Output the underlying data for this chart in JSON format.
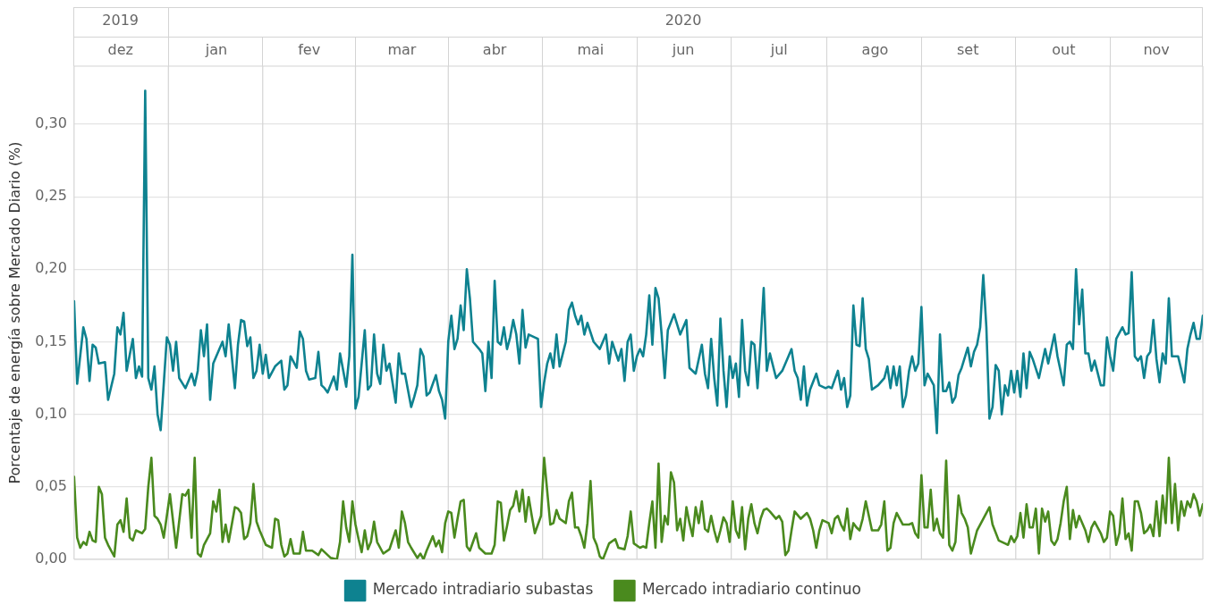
{
  "chart_data": {
    "type": "line",
    "ylabel": "Porcentaje de energía sobre Mercado Diario (%)",
    "xlim": [
      "2019-12-01",
      "2020-11-30"
    ],
    "xticks": [
      {
        "value": "2019-12-16",
        "label": "dez"
      },
      {
        "value": "2020-01-16",
        "label": "jan"
      },
      {
        "value": "2020-02-15",
        "label": "fev"
      },
      {
        "value": "2020-03-16",
        "label": "mar"
      },
      {
        "value": "2020-04-15",
        "label": "abr"
      },
      {
        "value": "2020-05-16",
        "label": "mai"
      },
      {
        "value": "2020-06-15",
        "label": "jun"
      },
      {
        "value": "2020-07-16",
        "label": "jul"
      },
      {
        "value": "2020-08-16",
        "label": "ago"
      },
      {
        "value": "2020-09-15",
        "label": "set"
      },
      {
        "value": "2020-10-16",
        "label": "out"
      },
      {
        "value": "2020-11-15",
        "label": "nov"
      }
    ],
    "x2lim": [
      "2019-12-01",
      "2020-11-30"
    ],
    "x2ticks": [
      {
        "value": "2019-12-16",
        "label": "2019"
      },
      {
        "value": "2020-06-15",
        "label": "2020"
      }
    ],
    "ylim": [
      0,
      0.34
    ],
    "yticks": [
      {
        "value": 0,
        "label": "0,00"
      },
      {
        "value": 0.05,
        "label": "0,05"
      },
      {
        "value": 0.1,
        "label": "0,10"
      },
      {
        "value": 0.15,
        "label": "0,15"
      },
      {
        "value": 0.2,
        "label": "0,20"
      },
      {
        "value": 0.25,
        "label": "0,25"
      },
      {
        "value": 0.3,
        "label": "0,30"
      }
    ],
    "grid": "y",
    "legend": "bottom",
    "marker": "none",
    "line_style": "solid",
    "series": [
      {
        "name": "Mercado intradiario subastas",
        "color": "#0e8290",
        "x": [
          "2019-12-01",
          "2019-12-02",
          "2019-12-04",
          "2019-12-05",
          "2019-12-06",
          "2019-12-07",
          "2019-12-08",
          "2019-12-09",
          "2019-12-11",
          "2019-12-12",
          "2019-12-14",
          "2019-12-15",
          "2019-12-16",
          "2019-12-17",
          "2019-12-18",
          "2019-12-20",
          "2019-12-21",
          "2019-12-22",
          "2019-12-23",
          "2019-12-24",
          "2019-12-25",
          "2019-12-26",
          "2019-12-27",
          "2019-12-28",
          "2019-12-29",
          "2019-12-31",
          "2020-01-01",
          "2020-01-02",
          "2020-01-03",
          "2020-01-04",
          "2020-01-06",
          "2020-01-08",
          "2020-01-09",
          "2020-01-10",
          "2020-01-11",
          "2020-01-12",
          "2020-01-13",
          "2020-01-14",
          "2020-01-15",
          "2020-01-17",
          "2020-01-18",
          "2020-01-19",
          "2020-01-20",
          "2020-01-22",
          "2020-01-23",
          "2020-01-24",
          "2020-01-25",
          "2020-01-26",
          "2020-01-27",
          "2020-01-28",
          "2020-01-29",
          "2020-01-30",
          "2020-01-31",
          "2020-02-01",
          "2020-02-02",
          "2020-02-04",
          "2020-02-06",
          "2020-02-07",
          "2020-02-08",
          "2020-02-09",
          "2020-02-11",
          "2020-02-12",
          "2020-02-13",
          "2020-02-14",
          "2020-02-15",
          "2020-02-17",
          "2020-02-18",
          "2020-02-19",
          "2020-02-20",
          "2020-02-21",
          "2020-02-23",
          "2020-02-24",
          "2020-02-25",
          "2020-02-27",
          "2020-02-28",
          "2020-02-29",
          "2020-03-01",
          "2020-03-02",
          "2020-03-04",
          "2020-03-05",
          "2020-03-06",
          "2020-03-07",
          "2020-03-08",
          "2020-03-09",
          "2020-03-10",
          "2020-03-11",
          "2020-03-12",
          "2020-03-14",
          "2020-03-15",
          "2020-03-16",
          "2020-03-17",
          "2020-03-19",
          "2020-03-20",
          "2020-03-21",
          "2020-03-22",
          "2020-03-23",
          "2020-03-24",
          "2020-03-25",
          "2020-03-27",
          "2020-03-28",
          "2020-03-29",
          "2020-03-30",
          "2020-03-31",
          "2020-04-01",
          "2020-04-02",
          "2020-04-03",
          "2020-04-04",
          "2020-04-05",
          "2020-04-06",
          "2020-04-07",
          "2020-04-08",
          "2020-04-10",
          "2020-04-11",
          "2020-04-12",
          "2020-04-13",
          "2020-04-14",
          "2020-04-15",
          "2020-04-16",
          "2020-04-17",
          "2020-04-18",
          "2020-04-19",
          "2020-04-20",
          "2020-04-21",
          "2020-04-22",
          "2020-04-23",
          "2020-04-24",
          "2020-04-25",
          "2020-04-26",
          "2020-04-28",
          "2020-04-29",
          "2020-04-30",
          "2020-05-01",
          "2020-05-02",
          "2020-05-03",
          "2020-05-04",
          "2020-05-05",
          "2020-05-06",
          "2020-05-08",
          "2020-05-09",
          "2020-05-10",
          "2020-05-11",
          "2020-05-12",
          "2020-05-13",
          "2020-05-14",
          "2020-05-15",
          "2020-05-17",
          "2020-05-19",
          "2020-05-21",
          "2020-05-22",
          "2020-05-23",
          "2020-05-25",
          "2020-05-26",
          "2020-05-27",
          "2020-05-28",
          "2020-05-29",
          "2020-05-30",
          "2020-05-31",
          "2020-06-01",
          "2020-06-02",
          "2020-06-03",
          "2020-06-04",
          "2020-06-05",
          "2020-06-06",
          "2020-06-07",
          "2020-06-08",
          "2020-06-09",
          "2020-06-10",
          "2020-06-12",
          "2020-06-14",
          "2020-06-16",
          "2020-06-17",
          "2020-06-19",
          "2020-06-21",
          "2020-06-22",
          "2020-06-23",
          "2020-06-24",
          "2020-06-25",
          "2020-06-26",
          "2020-06-27",
          "2020-06-28",
          "2020-06-29",
          "2020-06-30",
          "2020-07-01",
          "2020-07-02",
          "2020-07-03",
          "2020-07-04",
          "2020-07-05",
          "2020-07-06",
          "2020-07-07",
          "2020-07-08",
          "2020-07-09",
          "2020-07-10",
          "2020-07-11",
          "2020-07-12",
          "2020-07-13",
          "2020-07-15",
          "2020-07-17",
          "2020-07-19",
          "2020-07-20",
          "2020-07-21",
          "2020-07-22",
          "2020-07-23",
          "2020-07-24",
          "2020-07-25",
          "2020-07-26",
          "2020-07-28",
          "2020-07-29",
          "2020-07-31",
          "2020-08-01",
          "2020-08-02",
          "2020-08-04",
          "2020-08-05",
          "2020-08-06",
          "2020-08-07",
          "2020-08-08",
          "2020-08-09",
          "2020-08-10",
          "2020-08-11",
          "2020-08-12",
          "2020-08-13",
          "2020-08-14",
          "2020-08-15",
          "2020-08-17",
          "2020-08-19",
          "2020-08-20",
          "2020-08-21",
          "2020-08-22",
          "2020-08-23",
          "2020-08-24",
          "2020-08-25",
          "2020-08-26",
          "2020-08-27",
          "2020-08-28",
          "2020-08-29",
          "2020-08-30",
          "2020-08-31",
          "2020-09-01",
          "2020-09-02",
          "2020-09-04",
          "2020-09-05",
          "2020-09-06",
          "2020-09-07",
          "2020-09-08",
          "2020-09-09",
          "2020-09-10",
          "2020-09-11",
          "2020-09-12",
          "2020-09-13",
          "2020-09-15",
          "2020-09-16",
          "2020-09-17",
          "2020-09-18",
          "2020-09-19",
          "2020-09-20",
          "2020-09-21",
          "2020-09-22",
          "2020-09-23",
          "2020-09-24",
          "2020-09-25",
          "2020-09-26",
          "2020-09-27",
          "2020-09-28",
          "2020-09-29",
          "2020-09-30",
          "2020-10-01",
          "2020-10-02",
          "2020-10-03",
          "2020-10-04",
          "2020-10-05",
          "2020-10-06",
          "2020-10-08",
          "2020-10-10",
          "2020-10-11",
          "2020-10-13",
          "2020-10-14",
          "2020-10-16",
          "2020-10-17",
          "2020-10-18",
          "2020-10-19",
          "2020-10-20",
          "2020-10-21",
          "2020-10-22",
          "2020-10-23",
          "2020-10-24",
          "2020-10-25",
          "2020-10-26",
          "2020-10-28",
          "2020-10-29",
          "2020-10-30",
          "2020-10-31",
          "2020-11-01",
          "2020-11-02",
          "2020-11-04",
          "2020-11-05",
          "2020-11-06",
          "2020-11-07",
          "2020-11-08",
          "2020-11-09",
          "2020-11-10",
          "2020-11-11",
          "2020-11-12",
          "2020-11-13",
          "2020-11-14",
          "2020-11-15",
          "2020-11-16",
          "2020-11-17",
          "2020-11-18",
          "2020-11-19",
          "2020-11-20",
          "2020-11-22",
          "2020-11-24",
          "2020-11-25",
          "2020-11-26",
          "2020-11-27",
          "2020-11-28",
          "2020-11-29",
          "2020-11-30"
        ],
        "values": [
          0.178,
          0.121,
          0.16,
          0.152,
          0.123,
          0.148,
          0.146,
          0.135,
          0.136,
          0.11,
          0.128,
          0.16,
          0.155,
          0.17,
          0.13,
          0.152,
          0.125,
          0.133,
          0.126,
          0.323,
          0.125,
          0.117,
          0.133,
          0.1,
          0.089,
          0.153,
          0.148,
          0.13,
          0.15,
          0.125,
          0.118,
          0.128,
          0.12,
          0.13,
          0.158,
          0.14,
          0.162,
          0.11,
          0.135,
          0.145,
          0.15,
          0.14,
          0.162,
          0.118,
          0.148,
          0.165,
          0.164,
          0.147,
          0.153,
          0.125,
          0.13,
          0.148,
          0.128,
          0.141,
          0.125,
          0.133,
          0.137,
          0.117,
          0.12,
          0.14,
          0.132,
          0.157,
          0.152,
          0.13,
          0.124,
          0.125,
          0.143,
          0.12,
          0.118,
          0.115,
          0.126,
          0.117,
          0.142,
          0.119,
          0.14,
          0.21,
          0.104,
          0.112,
          0.158,
          0.117,
          0.12,
          0.155,
          0.128,
          0.121,
          0.148,
          0.13,
          0.135,
          0.108,
          0.142,
          0.128,
          0.128,
          0.105,
          0.112,
          0.12,
          0.145,
          0.14,
          0.113,
          0.115,
          0.127,
          0.116,
          0.11,
          0.097,
          0.15,
          0.168,
          0.145,
          0.152,
          0.175,
          0.158,
          0.2,
          0.18,
          0.15,
          0.145,
          0.142,
          0.116,
          0.15,
          0.125,
          0.192,
          0.15,
          0.148,
          0.16,
          0.145,
          0.153,
          0.165,
          0.155,
          0.135,
          0.172,
          0.146,
          0.155,
          0.153,
          0.152,
          0.105,
          0.122,
          0.135,
          0.142,
          0.132,
          0.155,
          0.133,
          0.15,
          0.172,
          0.177,
          0.168,
          0.162,
          0.168,
          0.155,
          0.163,
          0.15,
          0.145,
          0.155,
          0.135,
          0.15,
          0.137,
          0.145,
          0.123,
          0.15,
          0.155,
          0.13,
          0.14,
          0.145,
          0.14,
          0.155,
          0.182,
          0.148,
          0.187,
          0.18,
          0.155,
          0.125,
          0.158,
          0.169,
          0.155,
          0.165,
          0.132,
          0.128,
          0.148,
          0.128,
          0.118,
          0.152,
          0.125,
          0.106,
          0.166,
          0.13,
          0.105,
          0.14,
          0.125,
          0.135,
          0.112,
          0.165,
          0.13,
          0.12,
          0.15,
          0.148,
          0.118,
          0.15,
          0.187,
          0.13,
          0.142,
          0.125,
          0.13,
          0.14,
          0.145,
          0.13,
          0.125,
          0.11,
          0.133,
          0.106,
          0.117,
          0.128,
          0.12,
          0.118,
          0.119,
          0.118,
          0.13,
          0.117,
          0.125,
          0.105,
          0.113,
          0.175,
          0.148,
          0.147,
          0.18,
          0.145,
          0.138,
          0.117,
          0.12,
          0.125,
          0.133,
          0.118,
          0.133,
          0.12,
          0.133,
          0.105,
          0.113,
          0.13,
          0.14,
          0.13,
          0.135,
          0.174,
          0.12,
          0.128,
          0.12,
          0.087,
          0.155,
          0.116,
          0.116,
          0.122,
          0.108,
          0.112,
          0.127,
          0.132,
          0.146,
          0.133,
          0.143,
          0.148,
          0.16,
          0.196,
          0.16,
          0.097,
          0.105,
          0.134,
          0.13,
          0.1,
          0.12,
          0.113,
          0.13,
          0.115,
          0.13,
          0.112,
          0.142,
          0.118,
          0.143,
          0.138,
          0.125,
          0.145,
          0.135,
          0.155,
          0.14,
          0.12,
          0.148,
          0.15,
          0.145,
          0.2,
          0.162,
          0.186,
          0.142,
          0.142,
          0.13,
          0.137,
          0.12,
          0.12,
          0.153,
          0.14,
          0.13,
          0.152,
          0.16,
          0.155,
          0.156,
          0.198,
          0.14,
          0.137,
          0.14,
          0.125,
          0.14,
          0.143,
          0.165,
          0.138,
          0.122,
          0.142,
          0.135,
          0.18,
          0.14,
          0.14,
          0.122,
          0.145,
          0.155,
          0.163,
          0.152,
          0.152,
          0.168
        ]
      },
      {
        "name": "Mercado intradiario continuo",
        "color": "#4a8a1e",
        "x": [
          "2019-12-01",
          "2019-12-02",
          "2019-12-03",
          "2019-12-04",
          "2019-12-05",
          "2019-12-06",
          "2019-12-07",
          "2019-12-08",
          "2019-12-09",
          "2019-12-10",
          "2019-12-11",
          "2019-12-12",
          "2019-12-14",
          "2019-12-15",
          "2019-12-16",
          "2019-12-17",
          "2019-12-18",
          "2019-12-19",
          "2019-12-20",
          "2019-12-21",
          "2019-12-23",
          "2019-12-24",
          "2019-12-25",
          "2019-12-26",
          "2019-12-27",
          "2019-12-28",
          "2019-12-29",
          "2019-12-30",
          "2019-12-31",
          "2020-01-01",
          "2020-01-03",
          "2020-01-05",
          "2020-01-06",
          "2020-01-07",
          "2020-01-08",
          "2020-01-09",
          "2020-01-10",
          "2020-01-11",
          "2020-01-12",
          "2020-01-14",
          "2020-01-15",
          "2020-01-16",
          "2020-01-17",
          "2020-01-18",
          "2020-01-19",
          "2020-01-20",
          "2020-01-22",
          "2020-01-23",
          "2020-01-24",
          "2020-01-25",
          "2020-01-26",
          "2020-01-27",
          "2020-01-28",
          "2020-01-29",
          "2020-01-30",
          "2020-02-01",
          "2020-02-03",
          "2020-02-04",
          "2020-02-05",
          "2020-02-06",
          "2020-02-07",
          "2020-02-08",
          "2020-02-09",
          "2020-02-10",
          "2020-02-12",
          "2020-02-13",
          "2020-02-14",
          "2020-02-16",
          "2020-02-18",
          "2020-02-19",
          "2020-02-20",
          "2020-02-22",
          "2020-02-24",
          "2020-02-25",
          "2020-02-26",
          "2020-02-27",
          "2020-02-28",
          "2020-02-29",
          "2020-03-01",
          "2020-03-02",
          "2020-03-03",
          "2020-03-04",
          "2020-03-05",
          "2020-03-06",
          "2020-03-07",
          "2020-03-08",
          "2020-03-10",
          "2020-03-12",
          "2020-03-14",
          "2020-03-15",
          "2020-03-16",
          "2020-03-17",
          "2020-03-18",
          "2020-03-19",
          "2020-03-21",
          "2020-03-22",
          "2020-03-23",
          "2020-03-24",
          "2020-03-26",
          "2020-03-27",
          "2020-03-28",
          "2020-03-29",
          "2020-03-30",
          "2020-03-31",
          "2020-04-01",
          "2020-04-02",
          "2020-04-03",
          "2020-04-04",
          "2020-04-05",
          "2020-04-06",
          "2020-04-07",
          "2020-04-09",
          "2020-04-10",
          "2020-04-12",
          "2020-04-14",
          "2020-04-15",
          "2020-04-16",
          "2020-04-17",
          "2020-04-18",
          "2020-04-19",
          "2020-04-20",
          "2020-04-21",
          "2020-04-22",
          "2020-04-23",
          "2020-04-24",
          "2020-04-25",
          "2020-04-26",
          "2020-04-27",
          "2020-04-28",
          "2020-04-30",
          "2020-05-01",
          "2020-05-03",
          "2020-05-04",
          "2020-05-05",
          "2020-05-06",
          "2020-05-08",
          "2020-05-09",
          "2020-05-10",
          "2020-05-11",
          "2020-05-12",
          "2020-05-13",
          "2020-05-14",
          "2020-05-15",
          "2020-05-16",
          "2020-05-17",
          "2020-05-18",
          "2020-05-19",
          "2020-05-20",
          "2020-05-22",
          "2020-05-24",
          "2020-05-25",
          "2020-05-27",
          "2020-05-28",
          "2020-05-29",
          "2020-05-30",
          "2020-06-01",
          "2020-06-02",
          "2020-06-03",
          "2020-06-04",
          "2020-06-05",
          "2020-06-06",
          "2020-06-07",
          "2020-06-08",
          "2020-06-09",
          "2020-06-10",
          "2020-06-11",
          "2020-06-12",
          "2020-06-13",
          "2020-06-14",
          "2020-06-15",
          "2020-06-16",
          "2020-06-17",
          "2020-06-18",
          "2020-06-19",
          "2020-06-20",
          "2020-06-21",
          "2020-06-22",
          "2020-06-23",
          "2020-06-24",
          "2020-06-25",
          "2020-06-26",
          "2020-06-27",
          "2020-06-28",
          "2020-06-29",
          "2020-06-30",
          "2020-07-01",
          "2020-07-02",
          "2020-07-03",
          "2020-07-04",
          "2020-07-05",
          "2020-07-06",
          "2020-07-07",
          "2020-07-08",
          "2020-07-09",
          "2020-07-10",
          "2020-07-11",
          "2020-07-12",
          "2020-07-13",
          "2020-07-15",
          "2020-07-16",
          "2020-07-17",
          "2020-07-18",
          "2020-07-19",
          "2020-07-20",
          "2020-07-21",
          "2020-07-23",
          "2020-07-25",
          "2020-07-26",
          "2020-07-27",
          "2020-07-28",
          "2020-07-29",
          "2020-07-30",
          "2020-08-01",
          "2020-08-02",
          "2020-08-03",
          "2020-08-04",
          "2020-08-05",
          "2020-08-06",
          "2020-08-07",
          "2020-08-08",
          "2020-08-09",
          "2020-08-10",
          "2020-08-11",
          "2020-08-12",
          "2020-08-13",
          "2020-08-15",
          "2020-08-17",
          "2020-08-18",
          "2020-08-19",
          "2020-08-20",
          "2020-08-21",
          "2020-08-22",
          "2020-08-23",
          "2020-08-25",
          "2020-08-27",
          "2020-08-28",
          "2020-08-29",
          "2020-08-30",
          "2020-08-31",
          "2020-09-01",
          "2020-09-02",
          "2020-09-03",
          "2020-09-04",
          "2020-09-05",
          "2020-09-06",
          "2020-09-07",
          "2020-09-08",
          "2020-09-09",
          "2020-09-10",
          "2020-09-11",
          "2020-09-12",
          "2020-09-13",
          "2020-09-14",
          "2020-09-15",
          "2020-09-16",
          "2020-09-18",
          "2020-09-20",
          "2020-09-21",
          "2020-09-22",
          "2020-09-23",
          "2020-09-25",
          "2020-09-27",
          "2020-09-28",
          "2020-09-29",
          "2020-09-30",
          "2020-10-01",
          "2020-10-02",
          "2020-10-03",
          "2020-10-04",
          "2020-10-05",
          "2020-10-06",
          "2020-10-07",
          "2020-10-08",
          "2020-10-09",
          "2020-10-10",
          "2020-10-11",
          "2020-10-12",
          "2020-10-13",
          "2020-10-14",
          "2020-10-15",
          "2020-10-16",
          "2020-10-17",
          "2020-10-18",
          "2020-10-19",
          "2020-10-20",
          "2020-10-21",
          "2020-10-23",
          "2020-10-24",
          "2020-10-25",
          "2020-10-26",
          "2020-10-28",
          "2020-10-29",
          "2020-10-30",
          "2020-10-31",
          "2020-11-01",
          "2020-11-02",
          "2020-11-03",
          "2020-11-04",
          "2020-11-05",
          "2020-11-06",
          "2020-11-07",
          "2020-11-08",
          "2020-11-09",
          "2020-11-10",
          "2020-11-11",
          "2020-11-12",
          "2020-11-13",
          "2020-11-14",
          "2020-11-15",
          "2020-11-16",
          "2020-11-17",
          "2020-11-18",
          "2020-11-19",
          "2020-11-20",
          "2020-11-21",
          "2020-11-22",
          "2020-11-23",
          "2020-11-24",
          "2020-11-25",
          "2020-11-26",
          "2020-11-27",
          "2020-11-28",
          "2020-11-29",
          "2020-11-30"
        ],
        "values": [
          0.057,
          0.015,
          0.008,
          0.012,
          0.01,
          0.019,
          0.013,
          0.012,
          0.05,
          0.045,
          0.015,
          0.01,
          0.002,
          0.024,
          0.027,
          0.019,
          0.042,
          0.015,
          0.013,
          0.02,
          0.018,
          0.021,
          0.05,
          0.07,
          0.03,
          0.028,
          0.024,
          0.015,
          0.03,
          0.045,
          0.008,
          0.045,
          0.044,
          0.048,
          0.015,
          0.07,
          0.004,
          0.002,
          0.01,
          0.018,
          0.04,
          0.033,
          0.048,
          0.012,
          0.024,
          0.012,
          0.036,
          0.035,
          0.032,
          0.014,
          0.016,
          0.025,
          0.052,
          0.026,
          0.02,
          0.01,
          0.008,
          0.028,
          0.027,
          0.01,
          0.002,
          0.004,
          0.014,
          0.004,
          0.004,
          0.019,
          0.006,
          0.006,
          0.003,
          0.007,
          0.005,
          0.001,
          0.0,
          0.012,
          0.04,
          0.022,
          0.012,
          0.04,
          0.024,
          0.014,
          0.005,
          0.02,
          0.007,
          0.012,
          0.026,
          0.012,
          0.004,
          0.007,
          0.02,
          0.008,
          0.033,
          0.025,
          0.012,
          0.008,
          0.001,
          0.004,
          0.0,
          0.006,
          0.016,
          0.009,
          0.013,
          0.005,
          0.025,
          0.033,
          0.032,
          0.015,
          0.028,
          0.04,
          0.041,
          0.009,
          0.006,
          0.018,
          0.008,
          0.004,
          0.004,
          0.01,
          0.04,
          0.039,
          0.013,
          0.023,
          0.034,
          0.037,
          0.047,
          0.033,
          0.048,
          0.026,
          0.043,
          0.03,
          0.018,
          0.03,
          0.07,
          0.024,
          0.025,
          0.034,
          0.028,
          0.025,
          0.04,
          0.046,
          0.022,
          0.022,
          0.016,
          0.008,
          0.025,
          0.054,
          0.015,
          0.01,
          0.002,
          0.0,
          0.011,
          0.014,
          0.008,
          0.007,
          0.016,
          0.033,
          0.011,
          0.008,
          0.009,
          0.008,
          0.025,
          0.04,
          0.008,
          0.066,
          0.012,
          0.03,
          0.024,
          0.06,
          0.053,
          0.02,
          0.028,
          0.013,
          0.036,
          0.025,
          0.016,
          0.036,
          0.025,
          0.04,
          0.021,
          0.019,
          0.03,
          0.02,
          0.012,
          0.02,
          0.029,
          0.025,
          0.012,
          0.04,
          0.02,
          0.015,
          0.036,
          0.007,
          0.028,
          0.038,
          0.025,
          0.018,
          0.028,
          0.034,
          0.035,
          0.033,
          0.028,
          0.03,
          0.026,
          0.003,
          0.006,
          0.02,
          0.033,
          0.028,
          0.032,
          0.028,
          0.02,
          0.008,
          0.02,
          0.027,
          0.025,
          0.018,
          0.028,
          0.03,
          0.024,
          0.02,
          0.035,
          0.014,
          0.025,
          0.022,
          0.02,
          0.028,
          0.04,
          0.02,
          0.02,
          0.024,
          0.04,
          0.006,
          0.008,
          0.025,
          0.032,
          0.024,
          0.024,
          0.025,
          0.018,
          0.015,
          0.058,
          0.022,
          0.022,
          0.048,
          0.02,
          0.028,
          0.018,
          0.015,
          0.068,
          0.01,
          0.006,
          0.012,
          0.044,
          0.032,
          0.028,
          0.022,
          0.004,
          0.02,
          0.028,
          0.032,
          0.036,
          0.024,
          0.013,
          0.011,
          0.01,
          0.016,
          0.012,
          0.016,
          0.032,
          0.015,
          0.038,
          0.022,
          0.022,
          0.035,
          0.004,
          0.035,
          0.026,
          0.033,
          0.013,
          0.01,
          0.014,
          0.025,
          0.04,
          0.05,
          0.014,
          0.034,
          0.022,
          0.03,
          0.02,
          0.012,
          0.022,
          0.026,
          0.018,
          0.012,
          0.015,
          0.033,
          0.03,
          0.01,
          0.018,
          0.042,
          0.014,
          0.018,
          0.006,
          0.04,
          0.04,
          0.032,
          0.018,
          0.02,
          0.024,
          0.016,
          0.04,
          0.016,
          0.044,
          0.025,
          0.07,
          0.025,
          0.052,
          0.02,
          0.04,
          0.03,
          0.04,
          0.036,
          0.045,
          0.04,
          0.03,
          0.038
        ]
      }
    ]
  }
}
